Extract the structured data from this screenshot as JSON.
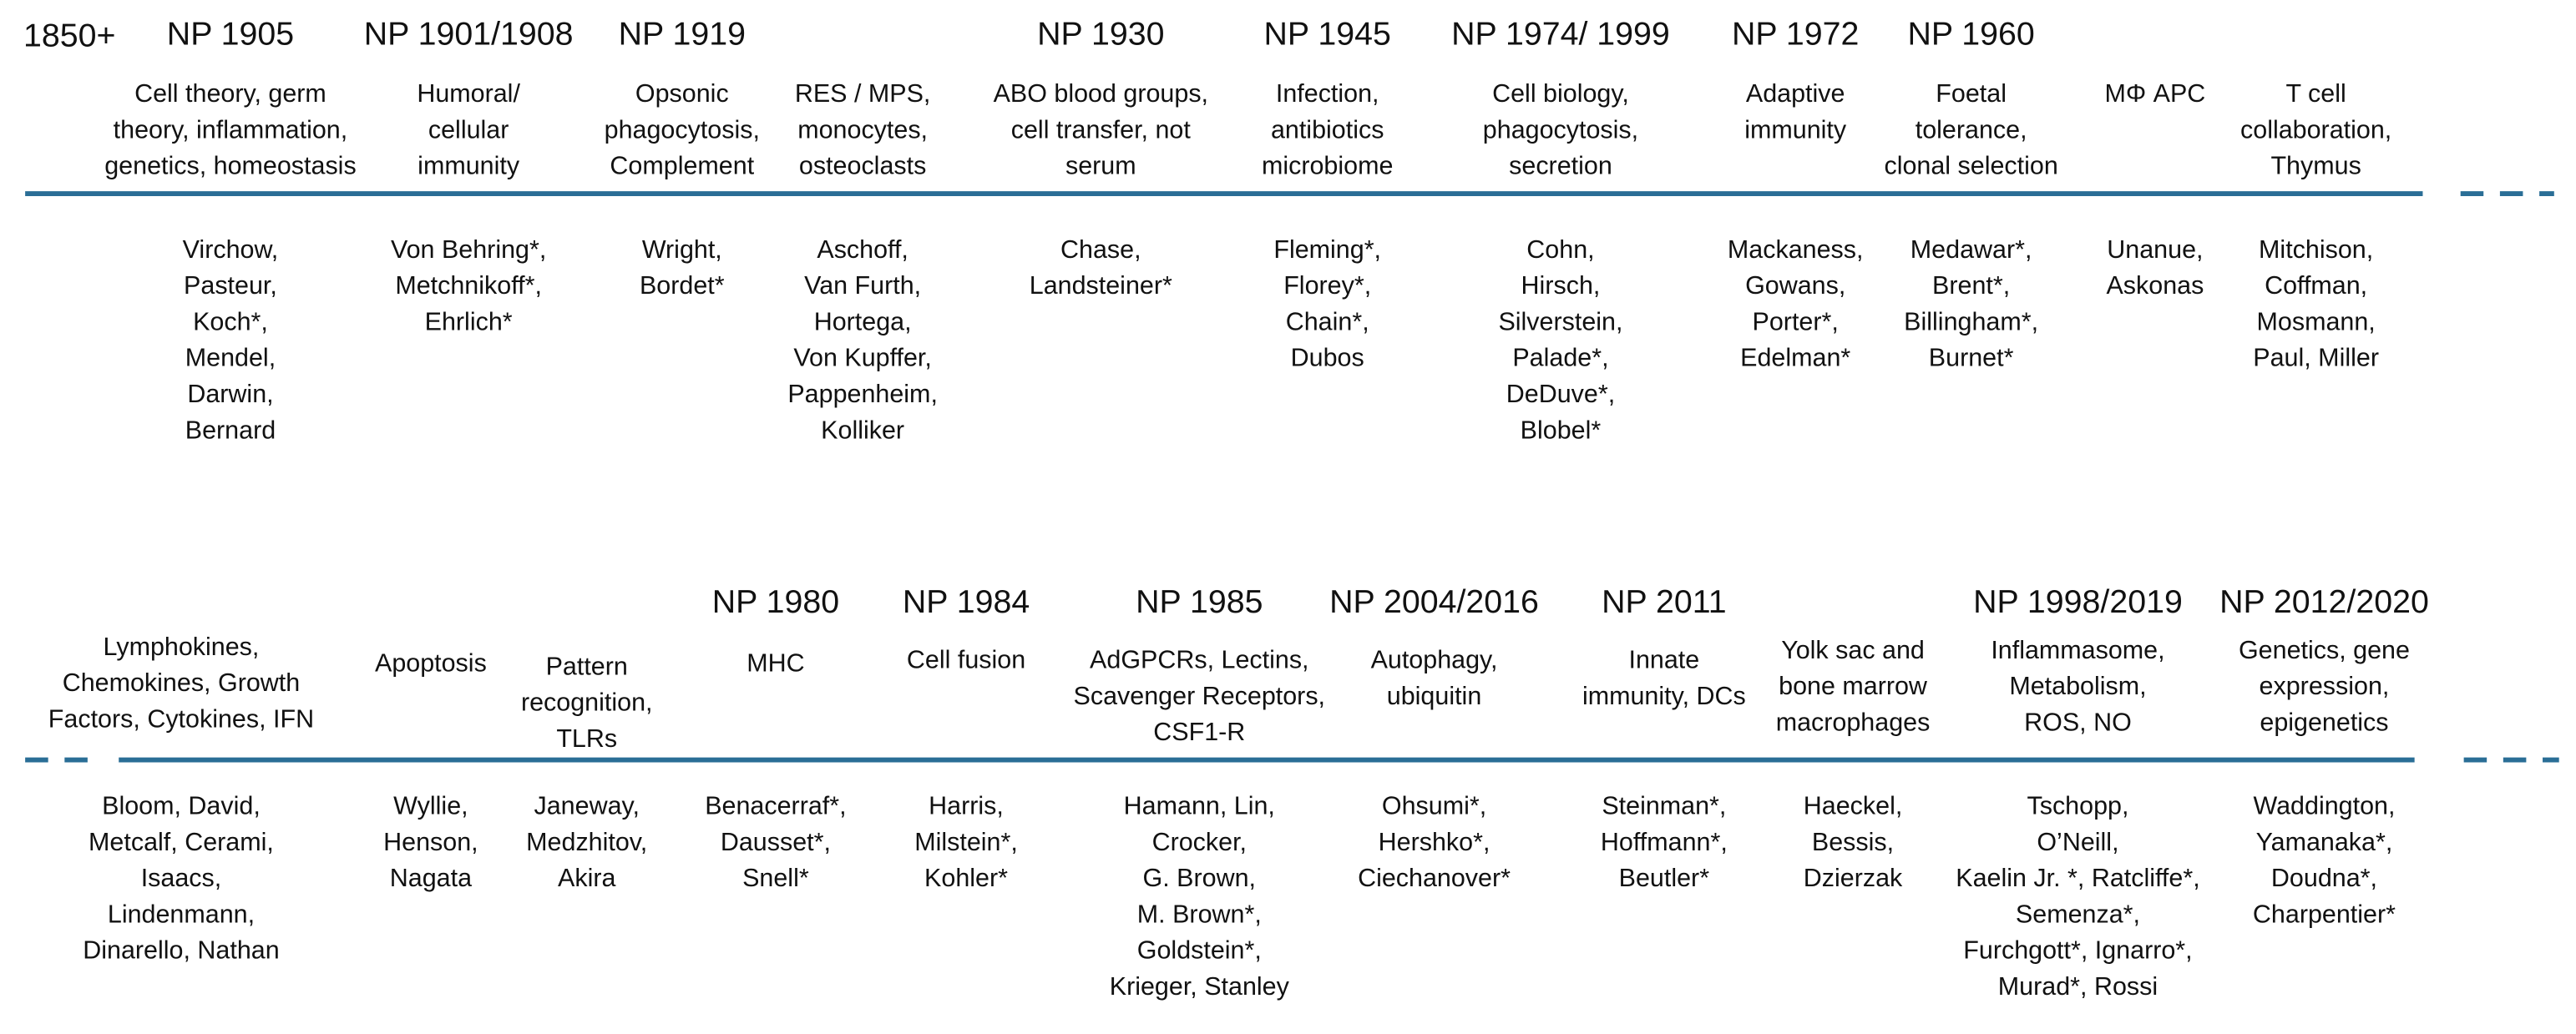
{
  "start_label": "1850+",
  "rows": [
    {
      "columns": [
        {
          "prize": "NP 1905",
          "topic": [
            "Cell theory, germ",
            "theory, inflammation,",
            "genetics, homeostasis"
          ],
          "names": [
            "Virchow,",
            "Pasteur,",
            "Koch*,",
            "Mendel,",
            "Darwin,",
            "Bernard"
          ]
        },
        {
          "prize": "NP 1901/1908",
          "topic": [
            "Humoral/",
            "cellular",
            "immunity"
          ],
          "names": [
            "Von Behring*,",
            "Metchnikoff*,",
            "Ehrlich*"
          ]
        },
        {
          "prize": "NP 1919",
          "topic": [
            "Opsonic",
            "phagocytosis,",
            "Complement"
          ],
          "names": [
            "Wright,",
            "Bordet*"
          ]
        },
        {
          "topic": [
            "RES / MPS,",
            "monocytes,",
            "osteoclasts"
          ],
          "names": [
            "Aschoff,",
            "Van Furth,",
            "Hortega,",
            "Von Kupffer,",
            "Pappenheim,",
            "Kolliker"
          ]
        },
        {
          "prize": "NP 1930",
          "topic": [
            "ABO blood groups,",
            "cell transfer, not",
            "serum"
          ],
          "names": [
            "Chase,",
            "Landsteiner*"
          ]
        },
        {
          "prize": "NP 1945",
          "topic": [
            "Infection,",
            "antibiotics",
            "microbiome"
          ],
          "names": [
            "Fleming*,",
            "Florey*,",
            "Chain*,",
            "Dubos"
          ]
        },
        {
          "prize": "NP 1974/ 1999",
          "topic": [
            "Cell biology,",
            "phagocytosis,",
            "secretion"
          ],
          "names": [
            "Cohn,",
            "Hirsch,",
            "Silverstein,",
            "Palade*,",
            "DeDuve*,",
            "Blobel*"
          ]
        },
        {
          "prize": "NP 1972",
          "topic": [
            "Adaptive",
            "immunity"
          ],
          "names": [
            "Mackaness,",
            "Gowans,",
            "Porter*,",
            "Edelman*"
          ]
        },
        {
          "prize": "NP 1960",
          "topic": [
            "Foetal",
            "tolerance,",
            "clonal selection"
          ],
          "names": [
            "Medawar*,",
            "Brent*,",
            "Billingham*,",
            "Burnet*"
          ]
        },
        {
          "topic": [
            "MΦ APC"
          ],
          "names": [
            "Unanue,",
            "Askonas"
          ]
        },
        {
          "topic": [
            "T cell",
            "collaboration,",
            "Thymus"
          ],
          "names": [
            "Mitchison,",
            "Coffman,",
            "Mosmann,",
            "Paul, Miller"
          ]
        }
      ]
    },
    {
      "columns": [
        {
          "topic": [
            "Lymphokines,",
            "Chemokines, Growth",
            "Factors, Cytokines, IFN"
          ],
          "names": [
            "Bloom, David,",
            "Metcalf, Cerami,",
            "Isaacs,",
            "Lindenmann,",
            "Dinarello, Nathan"
          ]
        },
        {
          "topic": [
            "Apoptosis"
          ],
          "names": [
            "Wyllie,",
            "Henson,",
            "Nagata"
          ]
        },
        {
          "topic": [
            "Pattern",
            "recognition,",
            "TLRs"
          ],
          "names": [
            "Janeway,",
            "Medzhitov,",
            "Akira"
          ]
        },
        {
          "prize": "NP 1980",
          "topic": [
            "MHC"
          ],
          "names": [
            "Benacerraf*,",
            "Dausset*,",
            "Snell*"
          ]
        },
        {
          "prize": "NP 1984",
          "topic": [
            "Cell fusion"
          ],
          "names": [
            "Harris,",
            "Milstein*,",
            "Kohler*"
          ]
        },
        {
          "prize": "NP 1985",
          "topic": [
            "AdGPCRs, Lectins,",
            "Scavenger Receptors,",
            "CSF1-R"
          ],
          "names": [
            "Hamann, Lin,",
            "Crocker,",
            "G. Brown,",
            "M. Brown*,",
            "Goldstein*,",
            "Krieger, Stanley"
          ]
        },
        {
          "prize": "NP 2004/2016",
          "topic": [
            "Autophagy,",
            "ubiquitin"
          ],
          "names": [
            "Ohsumi*,",
            "Hershko*,",
            "Ciechanover*"
          ]
        },
        {
          "prize": "NP 2011",
          "topic": [
            "Innate",
            "immunity, DCs"
          ],
          "names": [
            "Steinman*,",
            "Hoffmann*,",
            "Beutler*"
          ]
        },
        {
          "topic": [
            "Yolk sac and",
            "bone marrow",
            "macrophages"
          ],
          "names": [
            "Haeckel,",
            "Bessis,",
            "Dzierzak"
          ]
        },
        {
          "prize": "NP 1998/2019",
          "topic": [
            "Inflammasome,",
            "Metabolism,",
            "ROS, NO"
          ],
          "names": [
            "Tschopp,",
            "O’Neill,",
            "Kaelin Jr. *, Ratcliffe*,",
            "Semenza*,",
            "Furchgott*, Ignarro*,",
            "Murad*, Rossi"
          ]
        },
        {
          "prize": "NP 2012/2020",
          "topic": [
            "Genetics, gene",
            "expression,",
            "epigenetics"
          ],
          "names": [
            "Waddington,",
            "Yamanaka*,",
            "Doudna*,",
            "Charpentier*"
          ]
        }
      ]
    }
  ]
}
